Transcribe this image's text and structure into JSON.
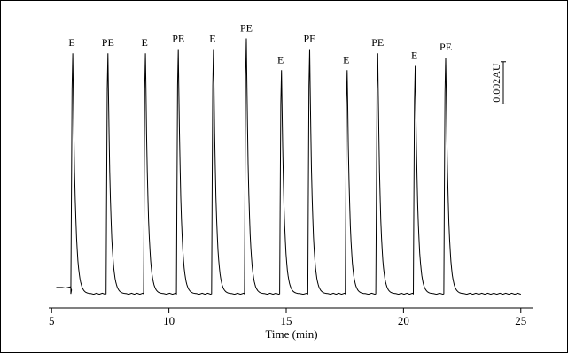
{
  "chart_data": {
    "type": "line",
    "title": "",
    "xlabel": "Time (min)",
    "ylabel": "",
    "xlim": [
      4.5,
      25.5
    ],
    "ylim": [
      -0.0005,
      0.0125
    ],
    "x_ticks": [
      5,
      10,
      15,
      20,
      25
    ],
    "x_tick_labels": [
      "5",
      "10",
      "15",
      "20",
      "25"
    ],
    "grid": false,
    "legend": "none",
    "baseline": 0.0,
    "plateau_before_first_peak": {
      "x": [
        5.2,
        5.9
      ],
      "y": 0.0003
    },
    "scale_bar": {
      "label": "0.002AU",
      "value": 0.002
    },
    "peaks": [
      {
        "label": "E",
        "x": 5.9,
        "y": 0.0114
      },
      {
        "label": "PE",
        "x": 7.4,
        "y": 0.0114
      },
      {
        "label": "E",
        "x": 9.0,
        "y": 0.0114
      },
      {
        "label": "PE",
        "x": 10.4,
        "y": 0.0116
      },
      {
        "label": "E",
        "x": 11.9,
        "y": 0.0116
      },
      {
        "label": "PE",
        "x": 13.3,
        "y": 0.0121
      },
      {
        "label": "E",
        "x": 14.8,
        "y": 0.0106
      },
      {
        "label": "PE",
        "x": 16.0,
        "y": 0.0116
      },
      {
        "label": "E",
        "x": 17.6,
        "y": 0.0106
      },
      {
        "label": "PE",
        "x": 18.9,
        "y": 0.0114
      },
      {
        "label": "E",
        "x": 20.5,
        "y": 0.0108
      },
      {
        "label": "PE",
        "x": 21.8,
        "y": 0.0112
      }
    ],
    "trace_end_x": 25.0
  }
}
